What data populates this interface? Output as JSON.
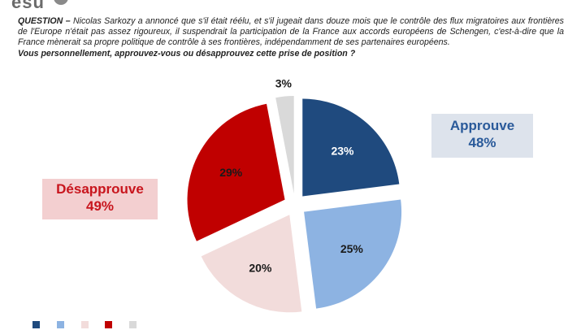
{
  "question": {
    "label": "QUESTION –",
    "text": "Nicolas Sarkozy a annoncé que s'il était réélu, et s'il jugeait dans douze mois que le contrôle des flux migratoires aux frontières de l'Europe n'était pas assez rigoureux, il suspendrait la participation de la France aux accords européens de Schengen, c'est-à-dire que la France mènerait sa propre politique de contrôle à ses frontières, indépendamment de ses partenaires européens.",
    "prompt": "Vous personnellement, approuvez-vous ou désapprouvez cette prise de position ?"
  },
  "summary": {
    "approve_label": "Approuve",
    "approve_value": "48%",
    "disapprove_label": "Désapprouve",
    "disapprove_value": "49%"
  },
  "colors": {
    "approve_box_bg": "#dde3ec",
    "approve_text": "#2a5a9a",
    "disapprove_box_bg": "#f3cfd0",
    "disapprove_text": "#c8151d"
  },
  "chart_data": {
    "type": "pie",
    "start_angle_deg": 0,
    "direction": "clockwise",
    "slices": [
      {
        "value": 23,
        "label": "23%",
        "color": "#1f4a7e",
        "text_color": "#ffffff"
      },
      {
        "value": 25,
        "label": "25%",
        "color": "#8db3e2",
        "text_color": "#1a1a1a"
      },
      {
        "value": 20,
        "label": "20%",
        "color": "#f2dcdb",
        "text_color": "#1a1a1a"
      },
      {
        "value": 29,
        "label": "29%",
        "color": "#c00000",
        "text_color": "#1a1a1a"
      },
      {
        "value": 3,
        "label": "3%",
        "color": "#d9d9d9",
        "text_color": "#1a1a1a"
      }
    ]
  }
}
